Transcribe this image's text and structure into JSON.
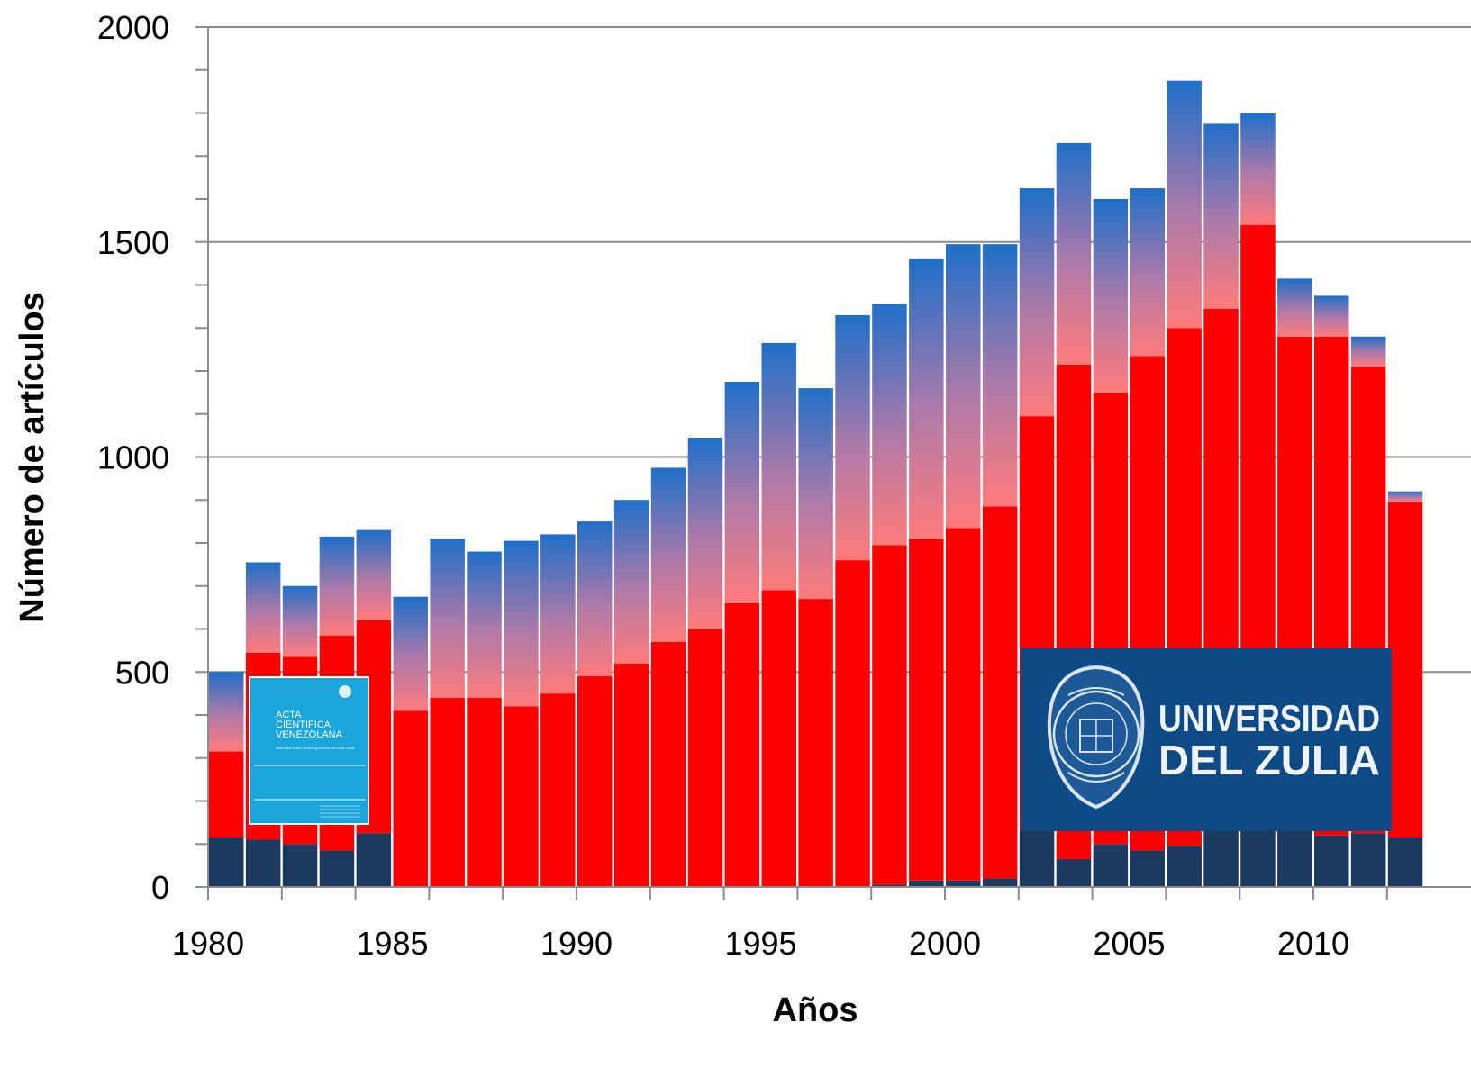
{
  "chart_data": {
    "type": "bar",
    "stacked": true,
    "xlabel": "Años",
    "ylabel": "Número de artículos",
    "ylim": [
      0,
      2000
    ],
    "yticks": [
      0,
      500,
      1000,
      1500,
      2000
    ],
    "xtick_labels": [
      "1980",
      "1985",
      "1990",
      "1995",
      "2000",
      "2005",
      "2010"
    ],
    "grid": "horizontal",
    "categories": [
      1980,
      1981,
      1982,
      1983,
      1984,
      1985,
      1986,
      1987,
      1988,
      1989,
      1990,
      1991,
      1992,
      1993,
      1994,
      1995,
      1996,
      1997,
      1998,
      1999,
      2000,
      2001,
      2002,
      2003,
      2004,
      2005,
      2006,
      2007,
      2008,
      2009,
      2010,
      2011,
      2012
    ],
    "series": [
      {
        "color": "#1a3a60",
        "values": [
          115,
          110,
          100,
          85,
          125,
          0,
          0,
          0,
          0,
          0,
          0,
          0,
          0,
          0,
          0,
          0,
          0,
          0,
          5,
          15,
          15,
          20,
          130,
          65,
          100,
          85,
          95,
          130,
          130,
          130,
          120,
          125,
          115
        ]
      },
      {
        "color": "#ff0000",
        "values": [
          200,
          435,
          435,
          500,
          495,
          410,
          440,
          440,
          420,
          450,
          490,
          520,
          570,
          600,
          660,
          690,
          670,
          760,
          790,
          795,
          820,
          865,
          965,
          1150,
          1050,
          1150,
          1205,
          1215,
          1410,
          1150,
          1160,
          1085,
          780
        ]
      },
      {
        "color": "#ff7b7b",
        "values": [
          185,
          210,
          165,
          230,
          210,
          265,
          370,
          340,
          385,
          370,
          360,
          380,
          405,
          445,
          515,
          575,
          490,
          570,
          560,
          650,
          660,
          610,
          530,
          515,
          450,
          390,
          575,
          430,
          260,
          135,
          95,
          70,
          25
        ]
      }
    ],
    "top_color": "#1f6fc9"
  },
  "images": {
    "journal_cover": {
      "name": "Acta Cientifica Venezolana cover",
      "title_lines": [
        "ACTA",
        "CIENTIFICA",
        "VENEZOLANA"
      ],
      "subtitle": "MATEMATICAS FISICA QUIMICA TECNOLOGIA",
      "color": "#1aa6dc"
    },
    "university_logo": {
      "name": "Universidad del Zulia logo",
      "line1": "UNIVERSIDAD",
      "line2": "DEL ZULIA",
      "color": "#0d4a86"
    }
  }
}
